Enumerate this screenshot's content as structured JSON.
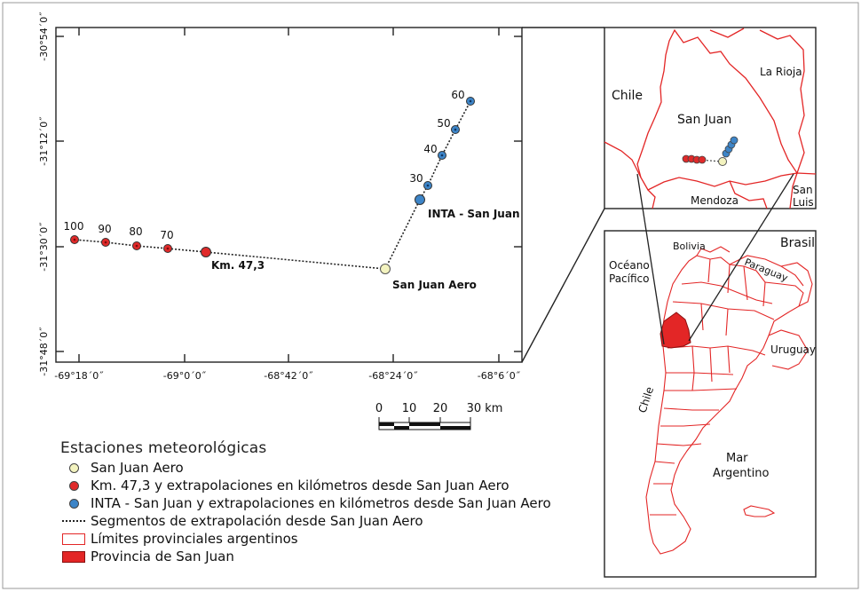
{
  "main_map": {
    "y_ticks": [
      "-30°54´0˝",
      "-31°12´0˝",
      "-31°30´0˝",
      "-31°48´0˝"
    ],
    "x_ticks": [
      "-69°18´0˝",
      "-69°0´0˝",
      "-68°42´0˝",
      "-68°24´0˝",
      "-68°6´0˝"
    ],
    "stations": {
      "aero": {
        "label": "San Juan Aero",
        "color": "#f3f3bf"
      },
      "km": {
        "label": "Km. 47,3",
        "color": "#e02a2a",
        "extrapolations": [
          "70",
          "80",
          "90",
          "100"
        ]
      },
      "inta": {
        "label": "INTA - San Juan",
        "color": "#3d85c8",
        "extrapolations": [
          "30",
          "40",
          "50",
          "60"
        ]
      }
    },
    "scale_bar": {
      "ticks": [
        "0",
        "10",
        "20",
        "30 km"
      ]
    }
  },
  "inset_province": {
    "labels": {
      "chile": "Chile",
      "la_rioja": "La Rioja",
      "san_juan": "San Juan",
      "mendoza": "Mendoza",
      "san_luis_1": "San",
      "san_luis_2": "Luis"
    }
  },
  "inset_country": {
    "labels": {
      "bolivia": "Bolivia",
      "brasil": "Brasil",
      "oceano_1": "Océano",
      "oceano_2": "Pacífico",
      "paraguay": "Paraguay",
      "uruguay": "Uruguay",
      "chile": "Chile",
      "mar_1": "Mar",
      "mar_2": "Argentino"
    }
  },
  "legend": {
    "title": "Estaciones meteorológicas",
    "items": [
      {
        "text": "San Juan Aero"
      },
      {
        "text": "Km. 47,3 y extrapolaciones en kilómetros desde San Juan Aero"
      },
      {
        "text": "INTA - San Juan y extrapolaciones en kilómetros desde San Juan Aero"
      },
      {
        "text": "Segmentos de extrapolación desde San Juan Aero"
      },
      {
        "text": "Límites provinciales argentinos"
      },
      {
        "text": "Provincia de San Juan"
      }
    ]
  },
  "colors": {
    "border": "#e32626",
    "province_fill": "#e32626",
    "frame": "#222222"
  }
}
